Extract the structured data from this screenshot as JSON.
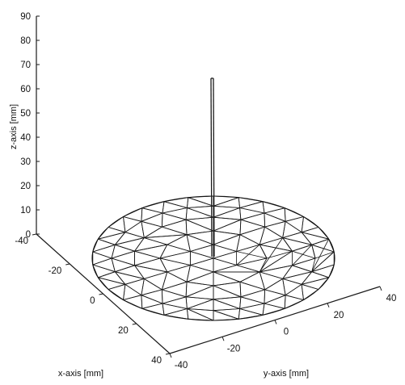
{
  "axes": {
    "z": {
      "label": "z-axis [mm]",
      "range": [
        0,
        90
      ],
      "ticks": [
        "0",
        "10",
        "20",
        "30",
        "40",
        "50",
        "60",
        "70",
        "80",
        "90"
      ]
    },
    "x": {
      "label": "x-axis [mm]",
      "range": [
        -40,
        40
      ],
      "ticks": [
        "-40",
        "-20",
        "0",
        "20",
        "40"
      ]
    },
    "y": {
      "label": "y-axis [mm]",
      "range": [
        -40,
        40
      ],
      "ticks": [
        "-40",
        "-20",
        "0",
        "20",
        "40"
      ]
    }
  },
  "mesh": {
    "shape": "circular disk",
    "element_type": "triangle",
    "radius_mm": 40,
    "z_mm": 0
  },
  "post": {
    "center_mm": [
      0,
      0
    ],
    "height_mm": 62
  }
}
